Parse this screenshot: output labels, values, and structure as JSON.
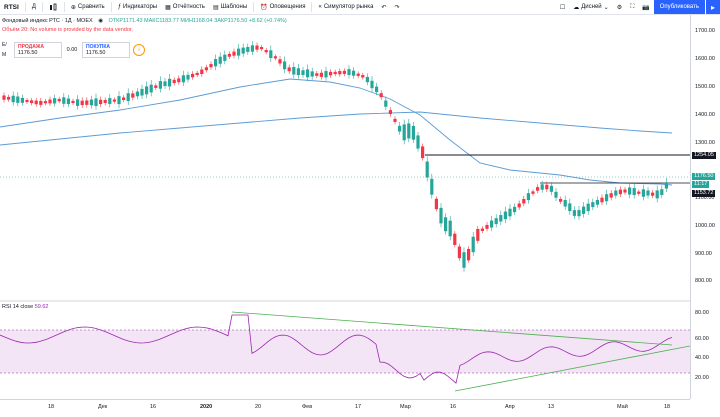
{
  "toolbar": {
    "symbol": "RTSI",
    "interval": "Д",
    "compare": "Сравнить",
    "indicators": "Индикаторы",
    "reports": "Отчётность",
    "templates": "Шаблоны",
    "alerts": "Оповещения",
    "replay": "Симулятор рынка",
    "layout_name": "Дисней",
    "publish": "Опубликовать"
  },
  "legend": {
    "title": "Фондовый индекс РТС · 1Д · MOEX",
    "open": "ОТКР1171.43",
    "high": "МАКС1183.77",
    "low": "МИН1168.04",
    "close": "ЗАКР1176.50",
    "change": "+8.62 (+0.74%)",
    "no_volume": "Объём 20: No volume is provided by the data vendor.",
    "ema_label1": "E/",
    "ema_label2": "M"
  },
  "trade": {
    "sell_label": "ПРОДАЖА",
    "sell_price": "1176.50",
    "spread": "0.00",
    "buy_label": "ПОКУПКА",
    "buy_price": "1176.50"
  },
  "rsi": {
    "label": "RSI 14 close",
    "value": "59.62"
  },
  "price_scale": {
    "ticks": [
      "1700.00",
      "1600.00",
      "1500.00",
      "1400.00",
      "1300.00",
      "1200.00",
      "1100.00",
      "1000.00",
      "900.00",
      "800.00"
    ],
    "tag_hline": "1254.05",
    "tag_last": "1176.50",
    "tag_time": "11:17",
    "tag_ma": "1153.72",
    "rsi_ticks": [
      "80.00",
      "60.00",
      "40.00",
      "20.00"
    ]
  },
  "time_axis": [
    "18",
    "Дек",
    "16",
    "2020",
    "20",
    "Фев",
    "17",
    "Мар",
    "16",
    "Апр",
    "13",
    "Май",
    "18"
  ],
  "colors": {
    "up": "#26a69a",
    "down": "#f23645",
    "ma": "#5b9bd5",
    "rsi": "#9c27b0",
    "trend": "#4caf50",
    "accent": "#2962ff"
  }
}
